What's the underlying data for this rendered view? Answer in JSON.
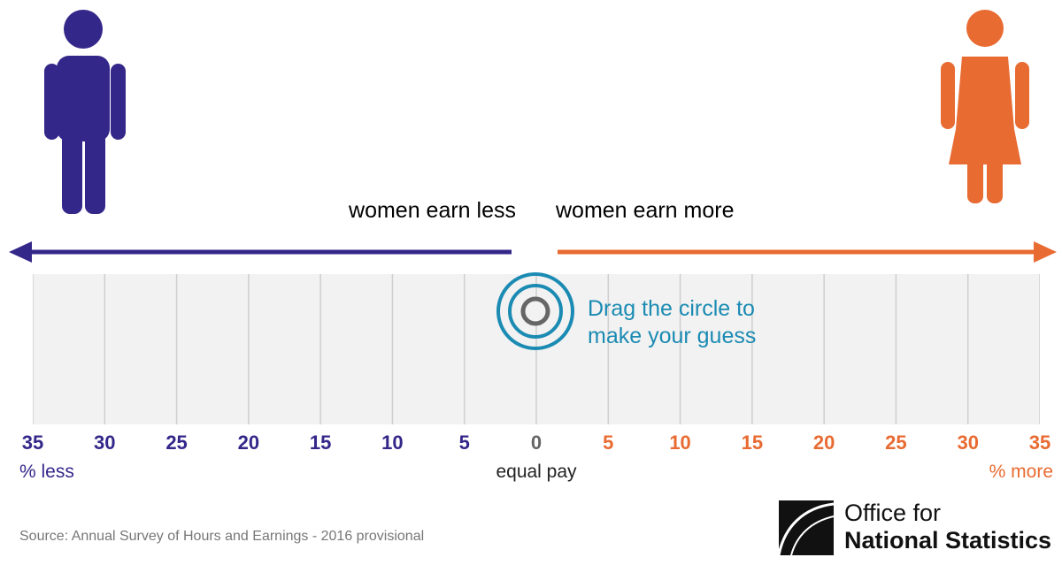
{
  "colors": {
    "less": "#34278a",
    "more": "#e86b32",
    "accent": "#1b8bb3",
    "gridline": "#cfcfcf",
    "handle_inner": "#666666"
  },
  "icons": {
    "man": "man-icon",
    "woman": "woman-icon",
    "logo": "ons-logo-icon"
  },
  "arrows": {
    "less_label": "women earn less",
    "more_label": "women earn more"
  },
  "scale": {
    "ticks": [
      {
        "label": "35",
        "value": -35,
        "side": "less"
      },
      {
        "label": "30",
        "value": -30,
        "side": "less"
      },
      {
        "label": "25",
        "value": -25,
        "side": "less"
      },
      {
        "label": "20",
        "value": -20,
        "side": "less"
      },
      {
        "label": "15",
        "value": -15,
        "side": "less"
      },
      {
        "label": "10",
        "value": -10,
        "side": "less"
      },
      {
        "label": "5",
        "value": -5,
        "side": "less"
      },
      {
        "label": "0",
        "value": 0,
        "side": "neutral"
      },
      {
        "label": "5",
        "value": 5,
        "side": "more"
      },
      {
        "label": "10",
        "value": 10,
        "side": "more"
      },
      {
        "label": "15",
        "value": 15,
        "side": "more"
      },
      {
        "label": "20",
        "value": 20,
        "side": "more"
      },
      {
        "label": "25",
        "value": 25,
        "side": "more"
      },
      {
        "label": "30",
        "value": 30,
        "side": "more"
      },
      {
        "label": "35",
        "value": 35,
        "side": "more"
      }
    ],
    "min": -35,
    "max": 35,
    "less_end_label": "% less",
    "center_label": "equal pay",
    "more_end_label": "% more"
  },
  "slider": {
    "value": 0,
    "hint_line1": "Drag the circle to",
    "hint_line2": "make your guess"
  },
  "source": "Source: Annual Survey of Hours and Earnings - 2016 provisional",
  "logo": {
    "line1": "Office for",
    "line2": "National Statistics"
  }
}
